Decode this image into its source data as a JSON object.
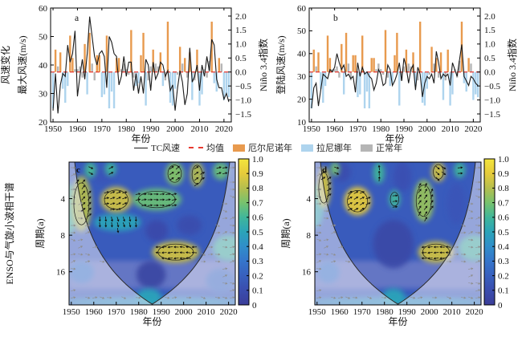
{
  "legend": {
    "items": [
      {
        "label": "TC风速",
        "swatch": "line",
        "color": "#1a1a1a"
      },
      {
        "label": "均值",
        "swatch": "dashed",
        "color": "#e8392f"
      },
      {
        "label": "厄尔尼诺年",
        "swatch": "box",
        "color": "#e89a4e"
      },
      {
        "label": "拉尼娜年",
        "swatch": "box",
        "color": "#aed4ee"
      },
      {
        "label": "正常年",
        "swatch": "box",
        "color": "#b5b5b5"
      }
    ],
    "category_legend": {
      "E": "厄尔尼诺年",
      "L": "拉尼娜年",
      "N": "正常年"
    }
  },
  "colors": {
    "el_nino_bar": "#e89a4e",
    "la_nina_bar": "#aed4ee",
    "normal_bar": "#b5b5b5",
    "tc_line": "#1a1a1a",
    "mean_line": "#e8392f",
    "colormap_low": "#3b3e99",
    "colormap_high": "#f3e53c"
  },
  "chart_data": [
    {
      "id": "a",
      "type": "line+bar",
      "panel_label": "a",
      "outer_ylabel": "风速变化",
      "ylabel_left": "最大风速(m/s)",
      "ylabel_right": "Niño 3.4指数",
      "xlabel": "年份",
      "ylim_left": [
        20,
        60
      ],
      "yticks_left": [
        20,
        30,
        40,
        50,
        60
      ],
      "ylim_right": [
        -1.5,
        2.0
      ],
      "yticks_right": [
        2,
        1.5,
        1,
        0.5,
        0,
        -0.5,
        -1,
        -1.5
      ],
      "x_range": [
        1949,
        2023
      ],
      "xticks": [
        1950,
        1960,
        1970,
        1980,
        1990,
        2000,
        2010,
        2020
      ],
      "year_start": 1950,
      "year_step": 1,
      "mean_wind_ms": 37.5,
      "wind": [
        24,
        37,
        23,
        33,
        37,
        36,
        47,
        41,
        44,
        52,
        29,
        36,
        42,
        35,
        44,
        57,
        50,
        43,
        40,
        44,
        45,
        43,
        32,
        50,
        48,
        44,
        43,
        33,
        36,
        43,
        36,
        41,
        41,
        31,
        37,
        30,
        36,
        30,
        42,
        40,
        31,
        41,
        35,
        37,
        41,
        40,
        36,
        38,
        31,
        33,
        24,
        32,
        38,
        34,
        26,
        30,
        46,
        34,
        36,
        40,
        31,
        40,
        36,
        43,
        38,
        49,
        47,
        35,
        32,
        32,
        28,
        30,
        27
      ],
      "nino34": [
        -1.3,
        0.8,
        0.2,
        0.7,
        -0.6,
        -1.1,
        -0.5,
        1.3,
        0.5,
        0.1,
        0.1,
        0.2,
        -0.2,
        1.0,
        -0.8,
        1.4,
        0.3,
        -0.3,
        0.6,
        0.6,
        -0.9,
        -0.8,
        1.3,
        -1.3,
        -0.7,
        -1.3,
        0.5,
        0.5,
        0.1,
        0.3,
        0.1,
        -0.1,
        1.5,
        -0.2,
        -0.5,
        -0.4,
        0.6,
        1.4,
        -1.2,
        -0.3,
        0.2,
        0.8,
        0.3,
        0.2,
        0.7,
        -0.5,
        -0.3,
        1.8,
        -1.1,
        -1.2,
        -0.6,
        -0.1,
        0.9,
        0.3,
        0.5,
        -0.2,
        0.7,
        -1.0,
        -0.3,
        0.8,
        -1.2,
        -0.8,
        0.1,
        -0.2,
        0.4,
        1.8,
        -0.4,
        -0.7,
        0.5,
        0.3,
        -1.0,
        -0.8,
        -0.9
      ],
      "category": "LENELLLEENNNNELENNEELLELLLEENNNNENLLEELNNENNELNELLLNENENELNELLNNNELLENLLL"
    },
    {
      "id": "b",
      "type": "line+bar",
      "panel_label": "b",
      "outer_ylabel": "",
      "ylabel_left": "登陆风速(m/s)",
      "ylabel_right": "Niño 3.4指数",
      "xlabel": "年份",
      "ylim_left": [
        10,
        60
      ],
      "yticks_left": [
        10,
        20,
        30,
        40,
        50,
        60
      ],
      "ylim_right": [
        -1.5,
        2.0
      ],
      "yticks_right": [
        2,
        1.5,
        1,
        0.5,
        0,
        -0.5,
        -1,
        -1.5
      ],
      "x_range": [
        1949,
        2023
      ],
      "xticks": [
        1950,
        1960,
        1970,
        1980,
        1990,
        2000,
        2010,
        2020
      ],
      "year_start": 1950,
      "year_step": 1,
      "mean_wind_ms": 30,
      "wind": [
        16,
        25,
        27,
        17,
        24,
        31,
        30,
        29,
        33,
        32,
        34,
        40,
        36,
        33,
        35,
        30,
        31,
        29,
        30,
        23,
        36,
        30,
        34,
        31,
        32,
        30,
        29,
        24,
        27,
        33,
        31,
        26,
        27,
        35,
        33,
        26,
        28,
        31,
        36,
        28,
        38,
        34,
        27,
        33,
        35,
        24,
        34,
        31,
        21,
        27,
        30,
        29,
        31,
        27,
        41,
        36,
        29,
        31,
        30,
        31,
        26,
        36,
        33,
        30,
        37,
        44,
        30,
        28,
        26,
        30,
        29,
        27,
        26
      ],
      "nino34": [
        -1.3,
        0.8,
        0.2,
        0.7,
        -0.6,
        -1.1,
        -0.5,
        1.3,
        0.5,
        0.1,
        0.1,
        0.2,
        -0.2,
        1.0,
        -0.8,
        1.4,
        0.3,
        -0.3,
        0.6,
        0.6,
        -0.9,
        -0.8,
        1.3,
        -1.3,
        -0.7,
        -1.3,
        0.5,
        0.5,
        0.1,
        0.3,
        0.1,
        -0.1,
        1.5,
        -0.2,
        -0.5,
        -0.4,
        0.6,
        1.4,
        -1.2,
        -0.3,
        0.2,
        0.8,
        0.3,
        0.2,
        0.7,
        -0.5,
        -0.3,
        1.8,
        -1.1,
        -1.2,
        -0.6,
        -0.1,
        0.9,
        0.3,
        0.5,
        -0.2,
        0.7,
        -1.0,
        -0.3,
        0.8,
        -1.2,
        -0.8,
        0.1,
        -0.2,
        0.4,
        1.8,
        -0.4,
        -0.7,
        0.5,
        0.3,
        -1.0,
        -0.8,
        -0.9
      ],
      "category": "LENELLLEENNNNELENNEELLELLLEENNNNENLLEELNNENNELNELLLNENENELNELLNNNELLENLLL"
    },
    {
      "id": "c",
      "type": "heatmap",
      "panel_label": "c",
      "outer_ylabel": "ENSO与气旋小波相干谱",
      "ylabel": "周期(a)",
      "xlabel": "年份",
      "yticks": [
        4,
        8,
        16
      ],
      "period_range": [
        2,
        30
      ],
      "y_scale": "log2",
      "x_range": [
        1949,
        2023
      ],
      "xticks": [
        1950,
        1960,
        1970,
        1980,
        1990,
        2000,
        2010,
        2020
      ],
      "coherence_range": [
        0,
        1
      ],
      "colorbar_ticks": [
        "1.0",
        "0.9",
        "0.8",
        "0.7",
        "0.6",
        "0.5",
        "0.4",
        "0.3",
        "0.2",
        "0.1",
        "0"
      ],
      "background_coherence": 0.18,
      "coi_vertex_year": 1986,
      "features": [
        {
          "years": [
            1950,
            1959
          ],
          "periods": [
            2.6,
            7.5
          ],
          "coherence": 0.8,
          "phase_deg": 45,
          "significant": true,
          "arrows": true
        },
        {
          "years": [
            1963,
            1977
          ],
          "periods": [
            3.2,
            5.2
          ],
          "coherence": 0.85,
          "phase_deg": 15,
          "significant": true,
          "arrows": true
        },
        {
          "years": [
            1977,
            1999
          ],
          "periods": [
            3.3,
            5.0
          ],
          "coherence": 0.68,
          "phase_deg": 5,
          "significant": true,
          "arrows": true
        },
        {
          "years": [
            1960,
            1981
          ],
          "periods": [
            5.3,
            7.4
          ],
          "coherence": 0.5,
          "phase_deg": -80,
          "significant": false,
          "arrows": true
        },
        {
          "years": [
            1986,
            2007
          ],
          "periods": [
            9,
            13.5
          ],
          "coherence": 0.85,
          "phase_deg": 180,
          "significant": true,
          "arrows": true
        },
        {
          "years": [
            1956,
            1961
          ],
          "periods": [
            2,
            2.7
          ],
          "coherence": 0.62,
          "phase_deg": -30,
          "significant": false,
          "arrows": true
        },
        {
          "years": [
            1965,
            1970
          ],
          "periods": [
            2,
            2.6
          ],
          "coherence": 0.6,
          "phase_deg": 20,
          "significant": false,
          "arrows": true
        },
        {
          "years": [
            1992,
            2000
          ],
          "periods": [
            2,
            3.1
          ],
          "coherence": 0.72,
          "phase_deg": 40,
          "significant": true,
          "arrows": true
        },
        {
          "years": [
            2003,
            2009
          ],
          "periods": [
            2,
            3.2
          ],
          "coherence": 0.8,
          "phase_deg": 30,
          "significant": true,
          "arrows": true
        },
        {
          "years": [
            2013,
            2020
          ],
          "periods": [
            2,
            2.8
          ],
          "coherence": 0.68,
          "phase_deg": 10,
          "significant": false,
          "arrows": true
        },
        {
          "years": [
            1979,
            1990
          ],
          "periods": [
            22,
            30
          ],
          "coherence": 0.5,
          "phase_deg": 0,
          "significant": false,
          "arrows": false
        },
        {
          "years": [
            1944,
            1953
          ],
          "periods": [
            3,
            8
          ],
          "coherence": 0.6,
          "phase_deg": 0,
          "significant": false,
          "arrows": false
        },
        {
          "years": [
            2013,
            2027
          ],
          "periods": [
            8,
            13
          ],
          "coherence": 0.6,
          "phase_deg": 0,
          "significant": false,
          "arrows": false
        },
        {
          "years": [
            1946,
            2026
          ],
          "periods": [
            26,
            31
          ],
          "coherence": 0.45,
          "phase_deg": 0,
          "significant": false,
          "arrows": false
        },
        {
          "years": [
            1979,
            1992
          ],
          "periods": [
            13,
            22
          ],
          "coherence": 0.05,
          "significant": false,
          "arrows": false
        },
        {
          "years": [
            1997,
            2008
          ],
          "periods": [
            5.5,
            8
          ],
          "coherence": 0.1,
          "significant": false,
          "arrows": false
        },
        {
          "years": [
            1959,
            1969
          ],
          "periods": [
            2.2,
            3
          ],
          "coherence": 0.15,
          "significant": false,
          "arrows": false
        },
        {
          "years": [
            1983,
            1993
          ],
          "periods": [
            6,
            9
          ],
          "coherence": 0.08,
          "significant": false,
          "arrows": false
        },
        {
          "years": [
            1949,
            1960
          ],
          "periods": [
            13,
            20
          ],
          "coherence": 0.3,
          "significant": false,
          "arrows": false
        },
        {
          "years": [
            2010,
            2023
          ],
          "periods": [
            15,
            24
          ],
          "coherence": 0.25,
          "significant": false,
          "arrows": false
        }
      ]
    },
    {
      "id": "d",
      "type": "heatmap",
      "panel_label": "d",
      "outer_ylabel": "",
      "ylabel": "周期(a)",
      "xlabel": "年份",
      "yticks": [
        4,
        8,
        16
      ],
      "period_range": [
        2,
        30
      ],
      "y_scale": "log2",
      "x_range": [
        1949,
        2023
      ],
      "xticks": [
        1950,
        1960,
        1970,
        1980,
        1990,
        2000,
        2010,
        2020
      ],
      "coherence_range": [
        0,
        1
      ],
      "colorbar_ticks": [
        "1.0",
        "0.9",
        "0.8",
        "0.7",
        "0.6",
        "0.5",
        "0.4",
        "0.3",
        "0.2",
        "0.1",
        "0"
      ],
      "background_coherence": 0.18,
      "coi_vertex_year": 1986,
      "features": [
        {
          "years": [
            1950,
            1956
          ],
          "periods": [
            2.2,
            4.8
          ],
          "coherence": 0.85,
          "phase_deg": 40,
          "significant": true,
          "arrows": true
        },
        {
          "years": [
            1962,
            1974
          ],
          "periods": [
            3.2,
            5.5
          ],
          "coherence": 0.9,
          "phase_deg": 25,
          "significant": true,
          "arrows": true
        },
        {
          "years": [
            1982,
            1987
          ],
          "periods": [
            3.4,
            4.8
          ],
          "coherence": 0.6,
          "phase_deg": 0,
          "significant": true,
          "arrows": true
        },
        {
          "years": [
            1993,
            2002
          ],
          "periods": [
            2.8,
            6.2
          ],
          "coherence": 0.75,
          "phase_deg": 60,
          "significant": true,
          "arrows": true
        },
        {
          "years": [
            1995,
            2011
          ],
          "periods": [
            9,
            13.5
          ],
          "coherence": 0.85,
          "phase_deg": 180,
          "significant": true,
          "arrows": true
        },
        {
          "years": [
            1956,
            1960
          ],
          "periods": [
            2,
            2.6
          ],
          "coherence": 0.7,
          "phase_deg": -20,
          "significant": false,
          "arrows": true
        },
        {
          "years": [
            1975,
            1980
          ],
          "periods": [
            2,
            3
          ],
          "coherence": 0.6,
          "phase_deg": 90,
          "significant": false,
          "arrows": true
        },
        {
          "years": [
            2001,
            2007
          ],
          "periods": [
            2,
            2.9
          ],
          "coherence": 0.85,
          "phase_deg": -40,
          "significant": true,
          "arrows": true
        },
        {
          "years": [
            2011,
            2016
          ],
          "periods": [
            2,
            2.7
          ],
          "coherence": 0.6,
          "phase_deg": 10,
          "significant": false,
          "arrows": true
        },
        {
          "years": [
            1979,
            1989
          ],
          "periods": [
            22,
            30
          ],
          "coherence": 0.5,
          "phase_deg": 0,
          "significant": false,
          "arrows": false
        },
        {
          "years": [
            1944,
            1953
          ],
          "periods": [
            3,
            7
          ],
          "coherence": 0.55,
          "phase_deg": 0,
          "significant": false,
          "arrows": false
        },
        {
          "years": [
            2013,
            2027
          ],
          "periods": [
            8,
            13
          ],
          "coherence": 0.6,
          "phase_deg": 0,
          "significant": false,
          "arrows": false
        },
        {
          "years": [
            1946,
            2026
          ],
          "periods": [
            26,
            31
          ],
          "coherence": 0.45,
          "phase_deg": 0,
          "significant": false,
          "arrows": false
        },
        {
          "years": [
            1975,
            1993
          ],
          "periods": [
            6,
            15
          ],
          "coherence": 0.07,
          "significant": false,
          "arrows": false
        },
        {
          "years": [
            1957,
            1965
          ],
          "periods": [
            2,
            2.9
          ],
          "coherence": 0.1,
          "significant": false,
          "arrows": false
        },
        {
          "years": [
            1984,
            1992
          ],
          "periods": [
            2,
            3.5
          ],
          "coherence": 0.12,
          "significant": false,
          "arrows": false
        },
        {
          "years": [
            2008,
            2016
          ],
          "periods": [
            3,
            6.5
          ],
          "coherence": 0.15,
          "significant": false,
          "arrows": false
        },
        {
          "years": [
            1950,
            1960
          ],
          "periods": [
            13,
            20
          ],
          "coherence": 0.3,
          "significant": false,
          "arrows": false
        }
      ]
    }
  ]
}
